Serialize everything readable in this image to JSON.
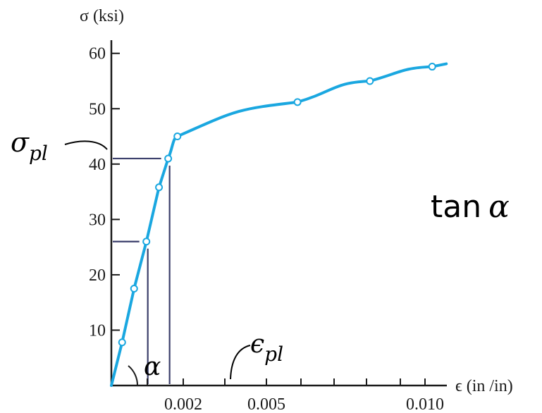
{
  "chart_data": {
    "type": "line",
    "title": "",
    "ylabel": "σ (ksi)",
    "xlabel": "ϵ (in /in)",
    "x_tick_labels": [
      {
        "value": 0.00234,
        "label": "0.002"
      },
      {
        "value": 0.005,
        "label": "0.005"
      },
      {
        "value": 0.01,
        "label": "0.010"
      }
    ],
    "x_minor_ticks": [
      0.00117,
      0.00234,
      0.0035,
      0.005,
      0.006,
      0.007,
      0.008,
      0.009,
      0.01
    ],
    "y_ticks": [
      10,
      20,
      30,
      40,
      50,
      60
    ],
    "ylim": [
      0,
      62
    ],
    "series": [
      {
        "color": "#1aa7e0",
        "points": [
          {
            "x": 0.0,
            "y": 0.0
          },
          {
            "x": 0.00035,
            "y": 7.8
          },
          {
            "x": 0.00074,
            "y": 17.5
          },
          {
            "x": 0.00114,
            "y": 26.0
          },
          {
            "x": 0.00155,
            "y": 35.8
          },
          {
            "x": 0.00185,
            "y": 41.0
          },
          {
            "x": 0.00215,
            "y": 45.0
          },
          {
            "x": 0.0059,
            "y": 51.2
          },
          {
            "x": 0.0081,
            "y": 55.0
          },
          {
            "x": 0.0103,
            "y": 57.6
          }
        ]
      }
    ],
    "guides": [
      {
        "x": 0.00114,
        "y": 26.0
      },
      {
        "x": 0.00185,
        "y": 41.0
      }
    ],
    "annotations": {
      "sigma_pl": {
        "base": "σ",
        "sub": "pl"
      },
      "epsilon_pl": {
        "base": "ϵ",
        "sub": "pl"
      },
      "alpha": "α",
      "tan_alpha": {
        "word": "tan",
        "symbol": "α"
      }
    }
  }
}
